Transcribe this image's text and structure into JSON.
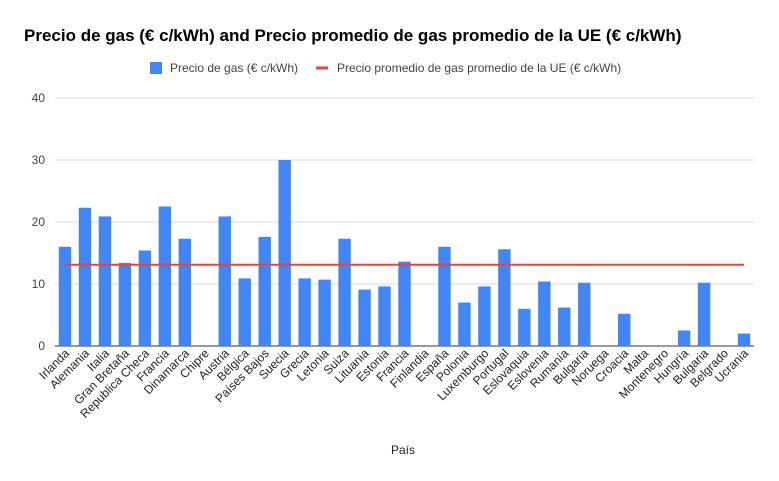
{
  "chart_data": {
    "type": "bar",
    "title": "Precio de gas (€ c/kWh) and Precio promedio de gas promedio de la UE (€ c/kWh)",
    "xlabel": "País",
    "ylabel": "",
    "ylim": [
      0,
      40
    ],
    "yticks": [
      0,
      10,
      20,
      30,
      40
    ],
    "grid": true,
    "legend_position": "top",
    "categories": [
      "Irlanda",
      "Alemania",
      "Italia",
      "Gran Bretaña",
      "Republica Checa",
      "Francia",
      "Dinamarca",
      "Chipre",
      "Austria",
      "Bélgica",
      "Países Bajos",
      "Suecia",
      "Grecia",
      "Letonia",
      "Suiza",
      "Lituania",
      "Estonia",
      "Francia",
      "Finlandia",
      "España",
      "Polonia",
      "Luxemburgo",
      "Portugal",
      "Eslovaquia",
      "Eslovenia",
      "Rumanía",
      "Bulgaria",
      "Noruega",
      "Croacia",
      "Malta",
      "Montenegro",
      "Hungría",
      "Bulgaria",
      "Belgrado",
      "Ucrania"
    ],
    "series": [
      {
        "name": "Precio de gas (€ c/kWh)",
        "kind": "bar",
        "color": "#4285f4",
        "values": [
          16.0,
          22.3,
          20.9,
          13.4,
          15.4,
          22.5,
          17.3,
          0,
          20.9,
          10.9,
          17.6,
          30.0,
          10.9,
          10.7,
          17.3,
          9.1,
          9.6,
          13.6,
          0,
          16.0,
          7.0,
          9.6,
          15.6,
          6.0,
          10.4,
          6.2,
          10.2,
          0,
          5.2,
          0,
          0,
          2.5,
          10.2,
          0,
          2.0
        ]
      },
      {
        "name": "Precio promedio de gas promedio de la UE (€ c/kWh)",
        "kind": "line",
        "color": "#ea4335",
        "value": 13.1
      }
    ]
  }
}
